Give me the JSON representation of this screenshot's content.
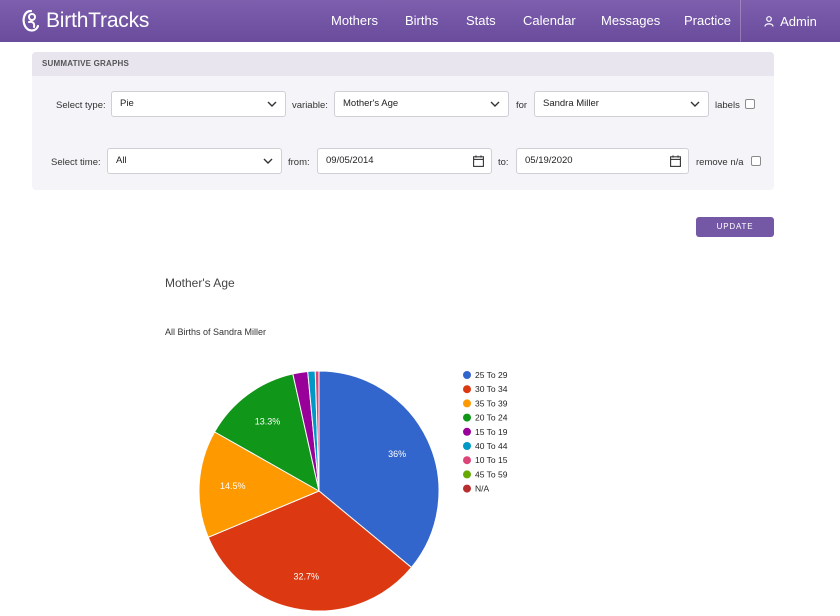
{
  "app": {
    "logo_text": "BirthTracks"
  },
  "nav": {
    "items": [
      "Mothers",
      "Births",
      "Stats",
      "Calendar",
      "Messages",
      "Practice"
    ],
    "admin_label": "Admin"
  },
  "panel": {
    "header": "SUMMATIVE GRAPHS",
    "select_type_label": "Select type:",
    "type_value": "Pie",
    "variable_label": "variable:",
    "variable_value": "Mother's Age",
    "for_label": "for",
    "for_value": "Sandra Miller",
    "labels_label": "labels",
    "labels_checked": false,
    "select_time_label": "Select time:",
    "time_value": "All",
    "from_label": "from:",
    "from_value": "09/05/2014",
    "to_label": "to:",
    "to_value": "05/19/2020",
    "remove_na_label": "remove n/a",
    "remove_na_checked": false
  },
  "update_label": "UPDATE",
  "chart_data": {
    "type": "pie",
    "title": "Mother's Age",
    "subtitle": "All Births of Sandra Miller",
    "legend_position": "right",
    "slices": [
      {
        "label": "25 To 29",
        "value": 36.0,
        "color": "#3366cc",
        "data_label": "36%"
      },
      {
        "label": "30 To 34",
        "value": 32.7,
        "color": "#dc3912",
        "data_label": "32.7%"
      },
      {
        "label": "35 To 39",
        "value": 14.5,
        "color": "#ff9900",
        "data_label": "14.5%"
      },
      {
        "label": "20 To 24",
        "value": 13.3,
        "color": "#109618",
        "data_label": "13.3%"
      },
      {
        "label": "15 To 19",
        "value": 2.0,
        "color": "#990099",
        "data_label": ""
      },
      {
        "label": "40 To 44",
        "value": 1.0,
        "color": "#0099c6",
        "data_label": ""
      },
      {
        "label": "10 To 15",
        "value": 0.5,
        "color": "#dd4477",
        "data_label": ""
      },
      {
        "label": "45 To 59",
        "value": 0,
        "color": "#66aa00",
        "data_label": ""
      },
      {
        "label": "N/A",
        "value": 0,
        "color": "#b82e2e",
        "data_label": ""
      }
    ]
  }
}
